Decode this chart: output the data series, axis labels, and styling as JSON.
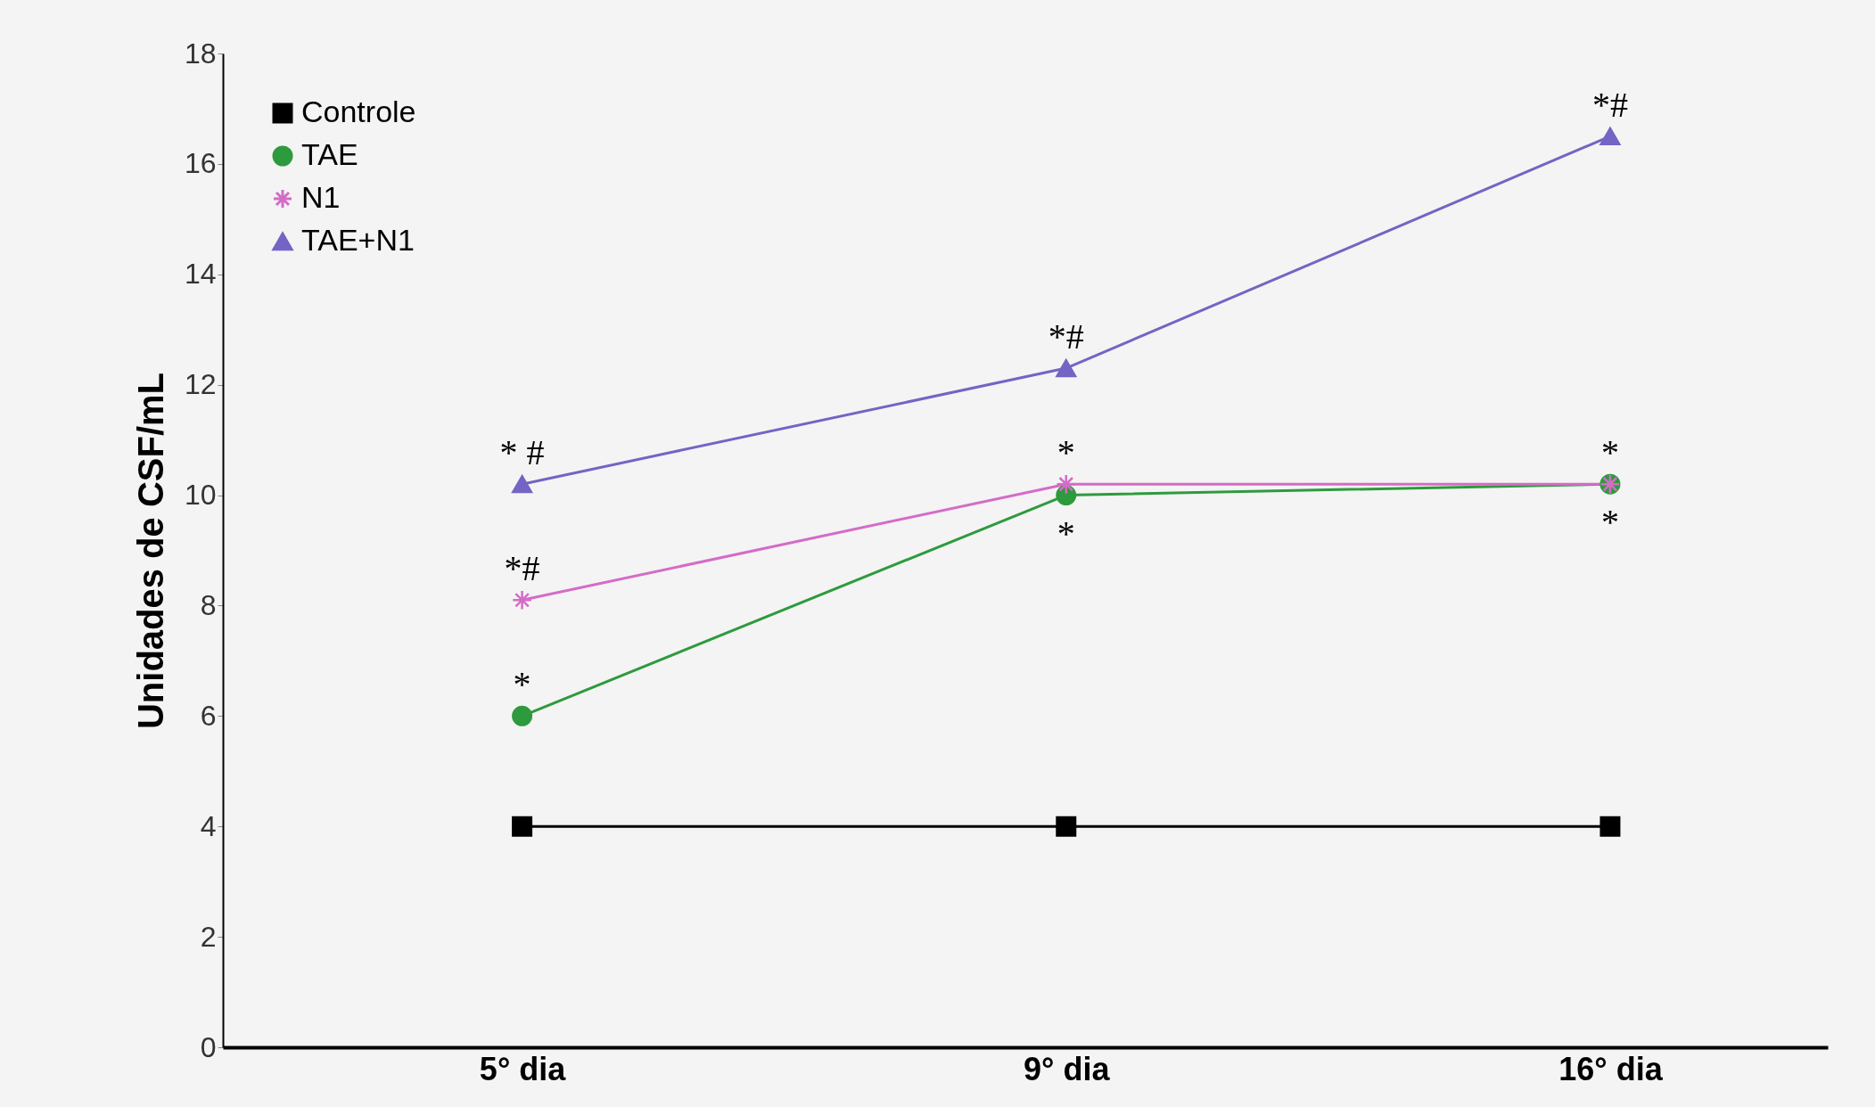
{
  "chart_data": {
    "type": "line",
    "ylabel": "Unidades de CSF/mL",
    "categories": [
      "5° dia",
      "9° dia",
      "16° dia"
    ],
    "ylim": [
      0,
      18
    ],
    "yticks": [
      0,
      2,
      4,
      6,
      8,
      10,
      12,
      14,
      16,
      18
    ],
    "grid": false,
    "legend": "top left",
    "series": [
      {
        "name": "Controle",
        "color": "#000000",
        "marker": "square",
        "values": [
          4,
          4,
          4
        ]
      },
      {
        "name": "TAE",
        "color": "#2e9a3e",
        "marker": "circle",
        "values": [
          6,
          10,
          10.2
        ]
      },
      {
        "name": "N1",
        "color": "#d46cc6",
        "marker": "cross",
        "values": [
          8.1,
          10.2,
          10.2
        ]
      },
      {
        "name": "TAE+N1",
        "color": "#7464c4",
        "marker": "triangle",
        "values": [
          10.2,
          12.3,
          16.5
        ]
      }
    ],
    "annotations": [
      {
        "text": "* #",
        "x": "5° dia",
        "y": 10.2
      },
      {
        "text": "*#",
        "x": "5° dia",
        "y": 8.1
      },
      {
        "text": "*",
        "x": "5° dia",
        "y": 6
      },
      {
        "text": "*#",
        "x": "9° dia",
        "y": 12.3
      },
      {
        "text": "*",
        "x": "9° dia",
        "y": 10.2
      },
      {
        "text": "*",
        "x": "9° dia",
        "y": 10
      },
      {
        "text": "*#",
        "x": "16° dia",
        "y": 16.5
      },
      {
        "text": "*",
        "x": "16° dia",
        "y": 10.2
      },
      {
        "text": "*",
        "x": "16° dia",
        "y": 10.2
      }
    ]
  }
}
